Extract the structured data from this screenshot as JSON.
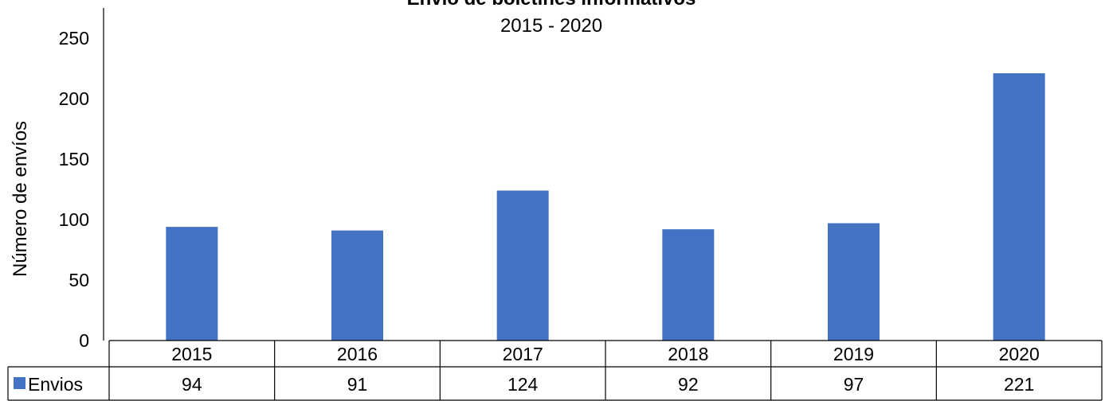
{
  "chart_data": {
    "type": "bar",
    "title": "Envío de boletines informativos",
    "subtitle": "2015 - 2020",
    "xlabel": "",
    "ylabel": "Número de envíos",
    "ylim": [
      0,
      250
    ],
    "y_ticks": [
      "0",
      "50",
      "100",
      "150",
      "200",
      "250"
    ],
    "categories": [
      "2015",
      "2016",
      "2017",
      "2018",
      "2019",
      "2020"
    ],
    "series": [
      {
        "name": "Envios",
        "values": [
          94,
          91,
          124,
          92,
          97,
          221
        ],
        "color": "#4472C4"
      }
    ],
    "data_table": true,
    "grid": false,
    "legend": "data-table"
  }
}
